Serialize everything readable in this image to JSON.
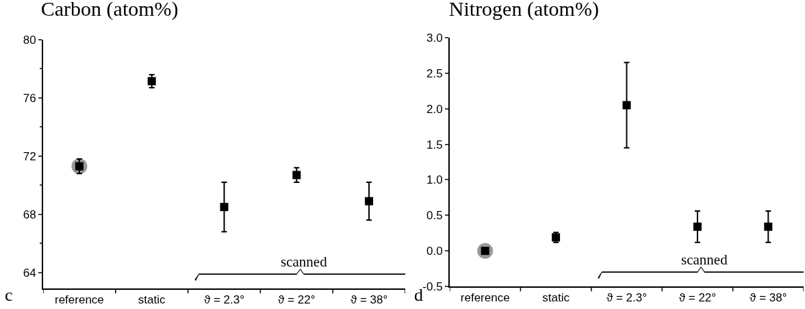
{
  "chart_data": [
    {
      "type": "scatter",
      "title": "Carbon (atom%)",
      "categories": [
        "reference",
        "static",
        "ϑ = 2.3°",
        "ϑ = 22°",
        "ϑ = 38°"
      ],
      "series": [
        {
          "color": "#999999",
          "marker": "circle",
          "x": [
            "reference"
          ],
          "values": [
            71.3
          ]
        },
        {
          "color": "#000000",
          "marker": "square",
          "values": [
            71.3,
            77.15,
            68.5,
            70.7,
            68.9
          ],
          "errors": [
            0.5,
            0.45,
            1.7,
            0.5,
            1.3
          ]
        }
      ],
      "ylim": [
        62.9,
        80
      ],
      "yticks": [
        64,
        68,
        72,
        76,
        80
      ],
      "grid": false,
      "annotations": [
        "c",
        "scanned"
      ]
    },
    {
      "type": "scatter",
      "title": "Nitrogen (atom%)",
      "categories": [
        "reference",
        "static",
        "ϑ = 2.3°",
        "ϑ = 22°",
        "ϑ = 38°"
      ],
      "series": [
        {
          "color": "#999999",
          "marker": "circle",
          "x": [
            "reference"
          ],
          "values": [
            0
          ]
        },
        {
          "color": "#000000",
          "marker": "square",
          "values": [
            0,
            0.19,
            2.05,
            0.34,
            0.34
          ],
          "errors": [
            null,
            0.07,
            0.6,
            0.22,
            0.22
          ]
        }
      ],
      "ylim": [
        -0.5,
        3.0
      ],
      "yticks": [
        {
          "value": -0.5,
          "label": "-0.5"
        },
        {
          "value": 0,
          "label": "0.0"
        },
        {
          "value": 0.5,
          "label": "0.5"
        },
        {
          "value": 1,
          "label": "1.0"
        },
        {
          "value": 1.5,
          "label": "1.5"
        },
        {
          "value": 2,
          "label": "2.0"
        },
        {
          "value": 2.5,
          "label": "2.5"
        },
        {
          "value": 3,
          "label": "3.0"
        }
      ],
      "grid": false,
      "annotations": [
        "d",
        "scanned"
      ]
    }
  ]
}
